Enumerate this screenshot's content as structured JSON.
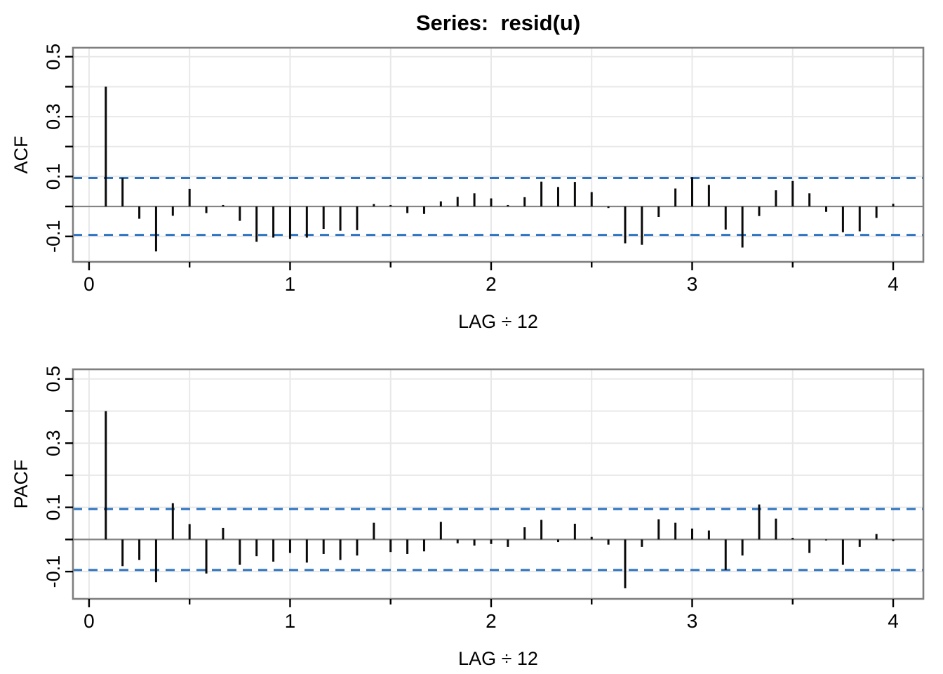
{
  "figure": {
    "title": "Series:  resid(u)",
    "background": "#ffffff"
  },
  "colors": {
    "bar": "#0a0a0a",
    "frame": "#7f7f7f",
    "zero_line": "#848484",
    "gridline": "#e8e8e8",
    "confidence_line": "#2e74c0",
    "text": "#000000"
  },
  "chart_data": [
    {
      "type": "bar",
      "panel": "ACF",
      "title": "Series:  resid(u)",
      "ylabel": "ACF",
      "xlabel": "LAG ÷ 12",
      "lag_divisor": 12,
      "n_lags": 48,
      "xlim": [
        -0.08,
        4.15
      ],
      "ylim": [
        -0.185,
        0.53
      ],
      "confidence_band": 0.095,
      "grid": true,
      "x_major_ticks": [
        0,
        1,
        2,
        3,
        4
      ],
      "x_minor_ticks": [
        0.5,
        1.5,
        2.5,
        3.5
      ],
      "x_tick_labels": [
        "0",
        "1",
        "2",
        "3",
        "4"
      ],
      "y_ticks": [
        0.5,
        0.4,
        0.3,
        0.2,
        0.1,
        0.0,
        -0.1
      ],
      "y_labeled_ticks": [
        0.5,
        0.3,
        0.1,
        -0.1
      ],
      "y_tick_labels": [
        "0.5",
        "0.3",
        "0.1",
        "-0.1"
      ],
      "values": [
        0.4,
        0.095,
        -0.041,
        -0.15,
        -0.031,
        0.059,
        -0.022,
        0.005,
        -0.048,
        -0.118,
        -0.104,
        -0.108,
        -0.104,
        -0.075,
        -0.081,
        -0.079,
        0.008,
        0.005,
        -0.022,
        -0.025,
        0.017,
        0.032,
        0.044,
        0.027,
        0.005,
        0.031,
        0.083,
        0.065,
        0.082,
        0.048,
        -0.005,
        -0.123,
        -0.128,
        -0.035,
        0.06,
        0.098,
        0.072,
        -0.077,
        -0.137,
        -0.032,
        0.054,
        0.085,
        0.044,
        -0.018,
        -0.086,
        -0.083,
        -0.038,
        0.009
      ]
    },
    {
      "type": "bar",
      "panel": "PACF",
      "title": "",
      "ylabel": "PACF",
      "xlabel": "LAG ÷ 12",
      "lag_divisor": 12,
      "n_lags": 48,
      "xlim": [
        -0.08,
        4.15
      ],
      "ylim": [
        -0.185,
        0.53
      ],
      "confidence_band": 0.095,
      "grid": true,
      "x_major_ticks": [
        0,
        1,
        2,
        3,
        4
      ],
      "x_minor_ticks": [
        0.5,
        1.5,
        2.5,
        3.5
      ],
      "x_tick_labels": [
        "0",
        "1",
        "2",
        "3",
        "4"
      ],
      "y_ticks": [
        0.5,
        0.4,
        0.3,
        0.2,
        0.1,
        0.0,
        -0.1
      ],
      "y_labeled_ticks": [
        0.5,
        0.3,
        0.1,
        -0.1
      ],
      "y_tick_labels": [
        "0.5",
        "0.3",
        "0.1",
        "-0.1"
      ],
      "values": [
        0.4,
        -0.083,
        -0.064,
        -0.133,
        0.113,
        0.048,
        -0.106,
        0.036,
        -0.079,
        -0.052,
        -0.069,
        -0.042,
        -0.072,
        -0.045,
        -0.064,
        -0.05,
        0.052,
        -0.039,
        -0.045,
        -0.037,
        0.055,
        -0.012,
        -0.019,
        -0.014,
        -0.023,
        0.038,
        0.061,
        -0.008,
        0.049,
        0.008,
        -0.016,
        -0.152,
        -0.023,
        0.063,
        0.052,
        0.034,
        0.028,
        -0.095,
        -0.05,
        0.109,
        0.065,
        0.005,
        -0.042,
        -0.003,
        -0.079,
        -0.023,
        0.017,
        -0.005
      ]
    }
  ]
}
